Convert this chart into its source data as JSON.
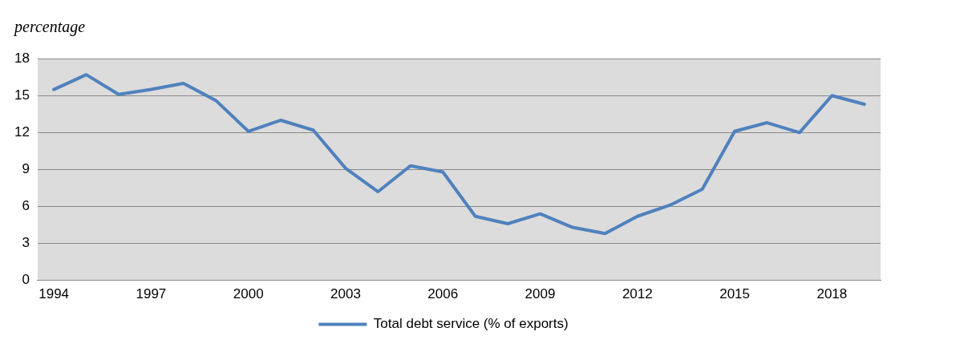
{
  "chart_data": {
    "type": "line",
    "ylabel": "percentage",
    "categories": [
      "1994",
      null,
      null,
      "1997",
      null,
      null,
      "2000",
      null,
      null,
      "2003",
      null,
      null,
      "2006",
      null,
      null,
      "2009",
      null,
      null,
      "2012",
      null,
      null,
      "2015",
      null,
      null,
      "2018",
      null
    ],
    "series": [
      {
        "name": "Total debt service (% of exports)",
        "color": "#4f81bd",
        "values": [
          15.5,
          16.7,
          15.1,
          15.5,
          16.0,
          14.6,
          12.1,
          13.0,
          12.2,
          9.1,
          7.2,
          9.3,
          8.8,
          5.2,
          4.6,
          5.4,
          4.3,
          3.8,
          5.2,
          6.1,
          7.4,
          12.1,
          12.8,
          12.0,
          15.0,
          14.3
        ]
      }
    ],
    "ylim": [
      0,
      18
    ],
    "yticks": [
      0,
      3,
      6,
      9,
      12,
      15,
      18
    ],
    "grid": "y",
    "legend": "bottom",
    "marker": "none",
    "line_style": "solid"
  }
}
